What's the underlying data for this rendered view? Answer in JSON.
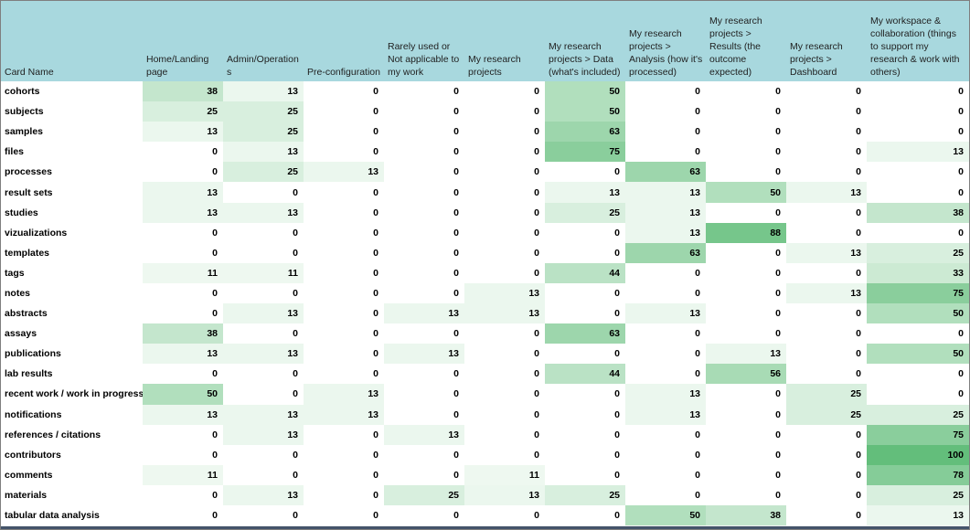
{
  "colors": {
    "header_bg": "#A8D8DE",
    "header_text": "#1F1F1F",
    "cell_text": "#000000",
    "outer_border": "#7F7F7F",
    "bottom_bar": "#44546A"
  },
  "chart_data": {
    "type": "heatmap",
    "title": "",
    "corner_label": "Card Name",
    "columns": [
      "Home/Landing page",
      "Admin/Operations",
      "Pre-configuration",
      "Rarely used or Not applicable to my work",
      "My research projects",
      "My research projects > Data (what's included)",
      "My research projects > Analysis (how it's processed)",
      "My research projects > Results (the outcome expected)",
      "My research projects > Dashboard",
      "My workspace & collaboration (things to support my research & work with others)"
    ],
    "rows": [
      {
        "name": "cohorts",
        "values": [
          38,
          13,
          0,
          0,
          0,
          50,
          0,
          0,
          0,
          0
        ]
      },
      {
        "name": "subjects",
        "values": [
          25,
          25,
          0,
          0,
          0,
          50,
          0,
          0,
          0,
          0
        ]
      },
      {
        "name": "samples",
        "values": [
          13,
          25,
          0,
          0,
          0,
          63,
          0,
          0,
          0,
          0
        ]
      },
      {
        "name": "files",
        "values": [
          0,
          13,
          0,
          0,
          0,
          75,
          0,
          0,
          0,
          13
        ]
      },
      {
        "name": "processes",
        "values": [
          0,
          25,
          13,
          0,
          0,
          0,
          63,
          0,
          0,
          0
        ]
      },
      {
        "name": "result sets",
        "values": [
          13,
          0,
          0,
          0,
          0,
          13,
          13,
          50,
          13,
          0
        ]
      },
      {
        "name": "studies",
        "values": [
          13,
          13,
          0,
          0,
          0,
          25,
          13,
          0,
          0,
          38
        ]
      },
      {
        "name": "vizualizations",
        "values": [
          0,
          0,
          0,
          0,
          0,
          0,
          13,
          88,
          0,
          0
        ]
      },
      {
        "name": "templates",
        "values": [
          0,
          0,
          0,
          0,
          0,
          0,
          63,
          0,
          13,
          25
        ]
      },
      {
        "name": "tags",
        "values": [
          11,
          11,
          0,
          0,
          0,
          44,
          0,
          0,
          0,
          33
        ]
      },
      {
        "name": "notes",
        "values": [
          0,
          0,
          0,
          0,
          13,
          0,
          0,
          0,
          13,
          75
        ]
      },
      {
        "name": "abstracts",
        "values": [
          0,
          13,
          0,
          13,
          13,
          0,
          13,
          0,
          0,
          50
        ]
      },
      {
        "name": "assays",
        "values": [
          38,
          0,
          0,
          0,
          0,
          63,
          0,
          0,
          0,
          0
        ]
      },
      {
        "name": "publications",
        "values": [
          13,
          13,
          0,
          13,
          0,
          0,
          0,
          13,
          0,
          50
        ]
      },
      {
        "name": "lab results",
        "values": [
          0,
          0,
          0,
          0,
          0,
          44,
          0,
          56,
          0,
          0
        ]
      },
      {
        "name": "recent work / work in progress",
        "values": [
          50,
          0,
          13,
          0,
          0,
          0,
          13,
          0,
          25,
          0
        ]
      },
      {
        "name": "notifications",
        "values": [
          13,
          13,
          13,
          0,
          0,
          0,
          13,
          0,
          25,
          25
        ]
      },
      {
        "name": "references / citations",
        "values": [
          0,
          13,
          0,
          13,
          0,
          0,
          0,
          0,
          0,
          75
        ]
      },
      {
        "name": "contributors",
        "values": [
          0,
          0,
          0,
          0,
          0,
          0,
          0,
          0,
          0,
          100
        ]
      },
      {
        "name": "comments",
        "values": [
          11,
          0,
          0,
          0,
          11,
          0,
          0,
          0,
          0,
          78
        ]
      },
      {
        "name": "materials",
        "values": [
          0,
          13,
          0,
          25,
          13,
          25,
          0,
          0,
          0,
          25
        ]
      },
      {
        "name": "tabular data analysis",
        "values": [
          0,
          0,
          0,
          0,
          0,
          0,
          50,
          38,
          0,
          13
        ]
      }
    ],
    "scale": {
      "min": 0,
      "max": 100,
      "min_color": "#FFFFFF",
      "max_color": "#63BE7B"
    },
    "legend": "none",
    "grid": false
  }
}
